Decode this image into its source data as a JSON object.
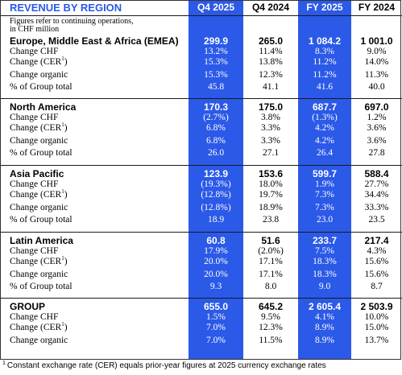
{
  "title": "REVENUE BY REGION",
  "note_lines": [
    "Figures refer to continuing operations,",
    "in CHF million"
  ],
  "columns": [
    "Q4 2025",
    "Q4 2024",
    "FY 2025",
    "FY 2024"
  ],
  "colors": {
    "highlight": "#2b59e8",
    "text": "#000000",
    "text_on_highlight": "#ffffff"
  },
  "cer_footnote_mark": "1",
  "sections": [
    {
      "name": "Europe, Middle East & Africa (EMEA)",
      "values": [
        "299.9",
        "265.0",
        "1 084.2",
        "1 001.0"
      ],
      "rows": [
        {
          "label": "Change CHF",
          "values": [
            "13.2%",
            "11.4%",
            "8.3%",
            "9.0%"
          ]
        },
        {
          "label": "Change (CER",
          "values": [
            "15.3%",
            "13.8%",
            "11.2%",
            "14.0%"
          ]
        },
        {
          "label": "Change organic",
          "values": [
            "15.3%",
            "12.3%",
            "11.2%",
            "11.3%"
          ]
        },
        {
          "label": "% of Group total",
          "values": [
            "45.8",
            "41.1",
            "41.6",
            "40.0"
          ]
        }
      ]
    },
    {
      "name": "North America",
      "values": [
        "170.3",
        "175.0",
        "687.7",
        "697.0"
      ],
      "rows": [
        {
          "label": "Change CHF",
          "values": [
            "(2.7%)",
            "3.8%",
            "(1.3%)",
            "1.2%"
          ]
        },
        {
          "label": "Change (CER",
          "values": [
            "6.8%",
            "3.3%",
            "4.2%",
            "3.6%"
          ]
        },
        {
          "label": "Change organic",
          "values": [
            "6.8%",
            "3.3%",
            "4.2%",
            "3.6%"
          ]
        },
        {
          "label": "% of Group total",
          "values": [
            "26.0",
            "27.1",
            "26.4",
            "27.8"
          ]
        }
      ]
    },
    {
      "name": "Asia Pacific",
      "values": [
        "123.9",
        "153.6",
        "599.7",
        "588.4"
      ],
      "rows": [
        {
          "label": "Change CHF",
          "values": [
            "(19.3%)",
            "18.0%",
            "1.9%",
            "27.7%"
          ]
        },
        {
          "label": "Change (CER",
          "values": [
            "(12.8%)",
            "19.7%",
            "7.3%",
            "34.4%"
          ]
        },
        {
          "label": "Change organic",
          "values": [
            "(12.8%)",
            "18.9%",
            "7.3%",
            "33.3%"
          ]
        },
        {
          "label": "% of Group total",
          "values": [
            "18.9",
            "23.8",
            "23.0",
            "23.5"
          ]
        }
      ]
    },
    {
      "name": "Latin America",
      "values": [
        "60.8",
        "51.6",
        "233.7",
        "217.4"
      ],
      "rows": [
        {
          "label": "Change CHF",
          "values": [
            "17.9%",
            "(2.0%)",
            "7.5%",
            "4.3%"
          ]
        },
        {
          "label": "Change (CER",
          "values": [
            "20.0%",
            "17.1%",
            "18.3%",
            "15.6%"
          ]
        },
        {
          "label": "Change organic",
          "values": [
            "20.0%",
            "17.1%",
            "18.3%",
            "15.6%"
          ]
        },
        {
          "label": "% of Group total",
          "values": [
            "9.3",
            "8.0",
            "9.0",
            "8.7"
          ]
        }
      ]
    },
    {
      "name": "GROUP",
      "values": [
        "655.0",
        "645.2",
        "2 605.4",
        "2 503.9"
      ],
      "rows": [
        {
          "label": "Change CHF",
          "values": [
            "1.5%",
            "9.5%",
            "4.1%",
            "10.0%"
          ]
        },
        {
          "label": "Change (CER",
          "values": [
            "7.0%",
            "12.3%",
            "8.9%",
            "15.0%"
          ]
        },
        {
          "label": "Change organic",
          "values": [
            "7.0%",
            "11.5%",
            "8.9%",
            "13.7%"
          ]
        }
      ]
    }
  ],
  "footnote": "Constant exchange rate (CER) equals prior-year figures at 2025 currency exchange rates"
}
